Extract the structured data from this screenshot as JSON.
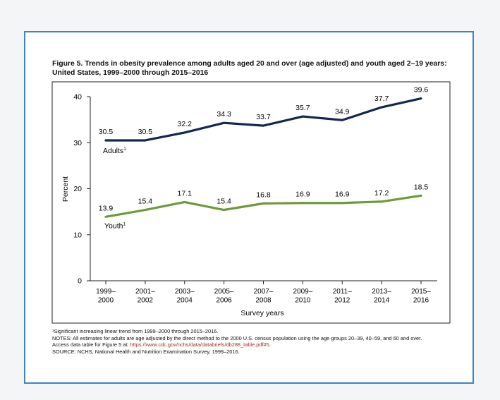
{
  "figure": {
    "title_line1": "Figure 5. Trends in obesity prevalence among adults aged 20 and over (age adjusted) and youth aged 2–19 years:",
    "title_line2": "United States, 1999–2000 through 2015–2016"
  },
  "chart_data": {
    "type": "line",
    "categories": [
      [
        "1999–",
        "2000"
      ],
      [
        "2001–",
        "2002"
      ],
      [
        "2003–",
        "2004"
      ],
      [
        "2005–",
        "2006"
      ],
      [
        "2007–",
        "2008"
      ],
      [
        "2009–",
        "2010"
      ],
      [
        "2011–",
        "2012"
      ],
      [
        "2013–",
        "2014"
      ],
      [
        "2015–",
        "2016"
      ]
    ],
    "series": [
      {
        "name": "Adults",
        "footnote_mark": "1",
        "color": "#13284f",
        "values": [
          30.5,
          30.5,
          32.2,
          34.3,
          33.7,
          35.7,
          34.9,
          37.7,
          39.6
        ]
      },
      {
        "name": "Youth",
        "footnote_mark": "1",
        "color": "#6f9a3a",
        "values": [
          13.9,
          15.4,
          17.1,
          15.4,
          16.8,
          16.9,
          16.9,
          17.2,
          18.5
        ]
      }
    ],
    "xlabel": "Survey years",
    "ylabel": "Percent",
    "ylim": [
      0,
      40
    ],
    "yticks": [
      0,
      10,
      20,
      30,
      40
    ],
    "grid": false,
    "legend": "inline labels"
  },
  "footer": {
    "note1": "¹Significant increasing linear trend from 1999–2000 through 2015–2016.",
    "note2": "NOTES: All estimates for adults are age adjusted by the direct method to the 2000 U.S. census population using the age groups 20–39, 40–59, and 60 and over.",
    "note3_prefix": "Access data table for Figure 5 at: ",
    "note3_link": "https://www.cdc.gov/nchs/data/databriefs/db288_table.pdf#5",
    "note3_suffix": ".",
    "source": "SOURCE: NCHS, National Health and Nutrition Examination Survey, 1999–2016."
  }
}
